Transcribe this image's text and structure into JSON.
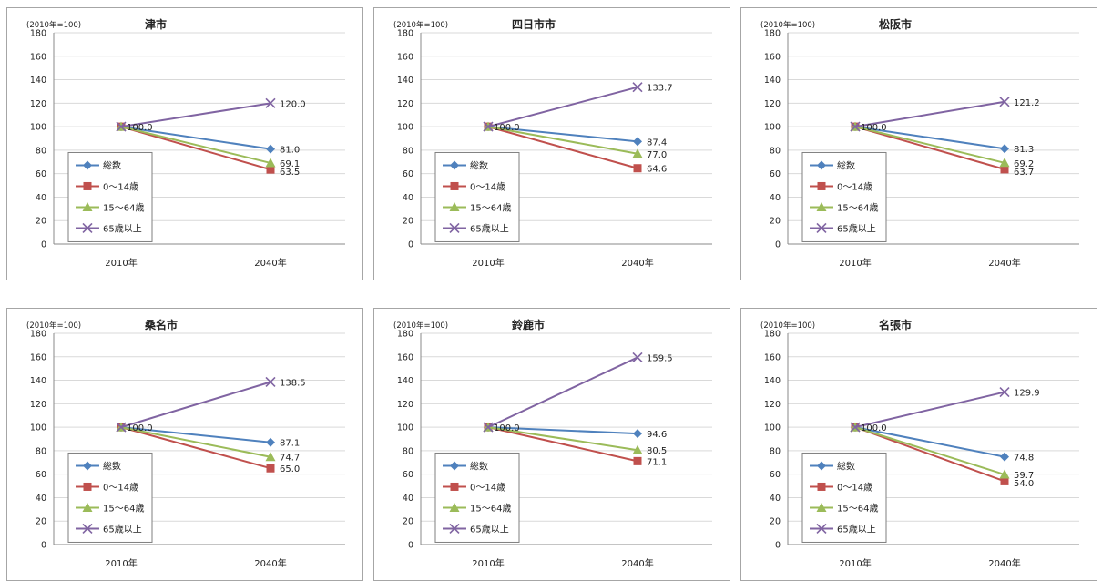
{
  "chart_data": [
    {
      "type": "line",
      "title": "津市",
      "index_note": "(2010年=100)",
      "categories": [
        "2010年",
        "2040年"
      ],
      "ylim": [
        0,
        180
      ],
      "yticks": [
        0,
        20,
        40,
        60,
        80,
        100,
        120,
        140,
        160,
        180
      ],
      "grid": true,
      "legend_position": "bottom-left",
      "start_label": "100.0",
      "series": [
        {
          "name": "総数",
          "values": [
            100,
            81.0
          ],
          "end_label": "81.0"
        },
        {
          "name": "0～14歳",
          "values": [
            100,
            63.5
          ],
          "end_label": "63.5"
        },
        {
          "name": "15～64歳",
          "values": [
            100,
            69.1
          ],
          "end_label": "69.1"
        },
        {
          "name": "65歳以上",
          "values": [
            100,
            120.0
          ],
          "end_label": "120.0"
        }
      ]
    },
    {
      "type": "line",
      "title": "四日市市",
      "index_note": "(2010年=100)",
      "categories": [
        "2010年",
        "2040年"
      ],
      "ylim": [
        0,
        180
      ],
      "yticks": [
        0,
        20,
        40,
        60,
        80,
        100,
        120,
        140,
        160,
        180
      ],
      "grid": true,
      "legend_position": "bottom-left",
      "start_label": "100.0",
      "series": [
        {
          "name": "総数",
          "values": [
            100,
            87.4
          ],
          "end_label": "87.4"
        },
        {
          "name": "0～14歳",
          "values": [
            100,
            64.6
          ],
          "end_label": "64.6"
        },
        {
          "name": "15～64歳",
          "values": [
            100,
            77.0
          ],
          "end_label": "77.0"
        },
        {
          "name": "65歳以上",
          "values": [
            100,
            133.7
          ],
          "end_label": "133.7"
        }
      ]
    },
    {
      "type": "line",
      "title": "松阪市",
      "index_note": "(2010年=100)",
      "categories": [
        "2010年",
        "2040年"
      ],
      "ylim": [
        0,
        180
      ],
      "yticks": [
        0,
        20,
        40,
        60,
        80,
        100,
        120,
        140,
        160,
        180
      ],
      "grid": true,
      "legend_position": "bottom-left",
      "start_label": "100.0",
      "series": [
        {
          "name": "総数",
          "values": [
            100,
            81.3
          ],
          "end_label": "81.3"
        },
        {
          "name": "0～14歳",
          "values": [
            100,
            63.7
          ],
          "end_label": "63.7"
        },
        {
          "name": "15～64歳",
          "values": [
            100,
            69.2
          ],
          "end_label": "69.2"
        },
        {
          "name": "65歳以上",
          "values": [
            100,
            121.2
          ],
          "end_label": "121.2"
        }
      ]
    },
    {
      "type": "line",
      "title": "桑名市",
      "index_note": "(2010年=100)",
      "categories": [
        "2010年",
        "2040年"
      ],
      "ylim": [
        0,
        180
      ],
      "yticks": [
        0,
        20,
        40,
        60,
        80,
        100,
        120,
        140,
        160,
        180
      ],
      "grid": true,
      "legend_position": "bottom-left",
      "start_label": "100.0",
      "series": [
        {
          "name": "総数",
          "values": [
            100,
            87.1
          ],
          "end_label": "87.1"
        },
        {
          "name": "0～14歳",
          "values": [
            100,
            65.0
          ],
          "end_label": "65.0"
        },
        {
          "name": "15～64歳",
          "values": [
            100,
            74.7
          ],
          "end_label": "74.7"
        },
        {
          "name": "65歳以上",
          "values": [
            100,
            138.5
          ],
          "end_label": "138.5"
        }
      ]
    },
    {
      "type": "line",
      "title": "鈴鹿市",
      "index_note": "(2010年=100)",
      "categories": [
        "2010年",
        "2040年"
      ],
      "ylim": [
        0,
        180
      ],
      "yticks": [
        0,
        20,
        40,
        60,
        80,
        100,
        120,
        140,
        160,
        180
      ],
      "grid": true,
      "legend_position": "bottom-left",
      "start_label": "100.0",
      "series": [
        {
          "name": "総数",
          "values": [
            100,
            94.6
          ],
          "end_label": "94.6"
        },
        {
          "name": "0～14歳",
          "values": [
            100,
            71.1
          ],
          "end_label": "71.1"
        },
        {
          "name": "15～64歳",
          "values": [
            100,
            80.5
          ],
          "end_label": "80.5"
        },
        {
          "name": "65歳以上",
          "values": [
            100,
            159.5
          ],
          "end_label": "159.5"
        }
      ]
    },
    {
      "type": "line",
      "title": "名張市",
      "index_note": "(2010年=100)",
      "categories": [
        "2010年",
        "2040年"
      ],
      "ylim": [
        0,
        180
      ],
      "yticks": [
        0,
        20,
        40,
        60,
        80,
        100,
        120,
        140,
        160,
        180
      ],
      "grid": true,
      "legend_position": "bottom-left",
      "start_label": "100.0",
      "series": [
        {
          "name": "総数",
          "values": [
            100,
            74.8
          ],
          "end_label": "74.8"
        },
        {
          "name": "0～14歳",
          "values": [
            100,
            54.0
          ],
          "end_label": "54.0"
        },
        {
          "name": "15～64歳",
          "values": [
            100,
            59.7
          ],
          "end_label": "59.7"
        },
        {
          "name": "65歳以上",
          "values": [
            100,
            129.9
          ],
          "end_label": "129.9"
        }
      ]
    }
  ],
  "colors": {
    "total": "#4f81bd",
    "age_0_14": "#c0504d",
    "age_15_64": "#9bbb59",
    "age_65_plus": "#8064a2",
    "grid": "#d9d9d9",
    "frame": "#a6a6a6",
    "text": "#222222"
  },
  "markers": [
    "diamond",
    "square",
    "triangle",
    "x"
  ]
}
